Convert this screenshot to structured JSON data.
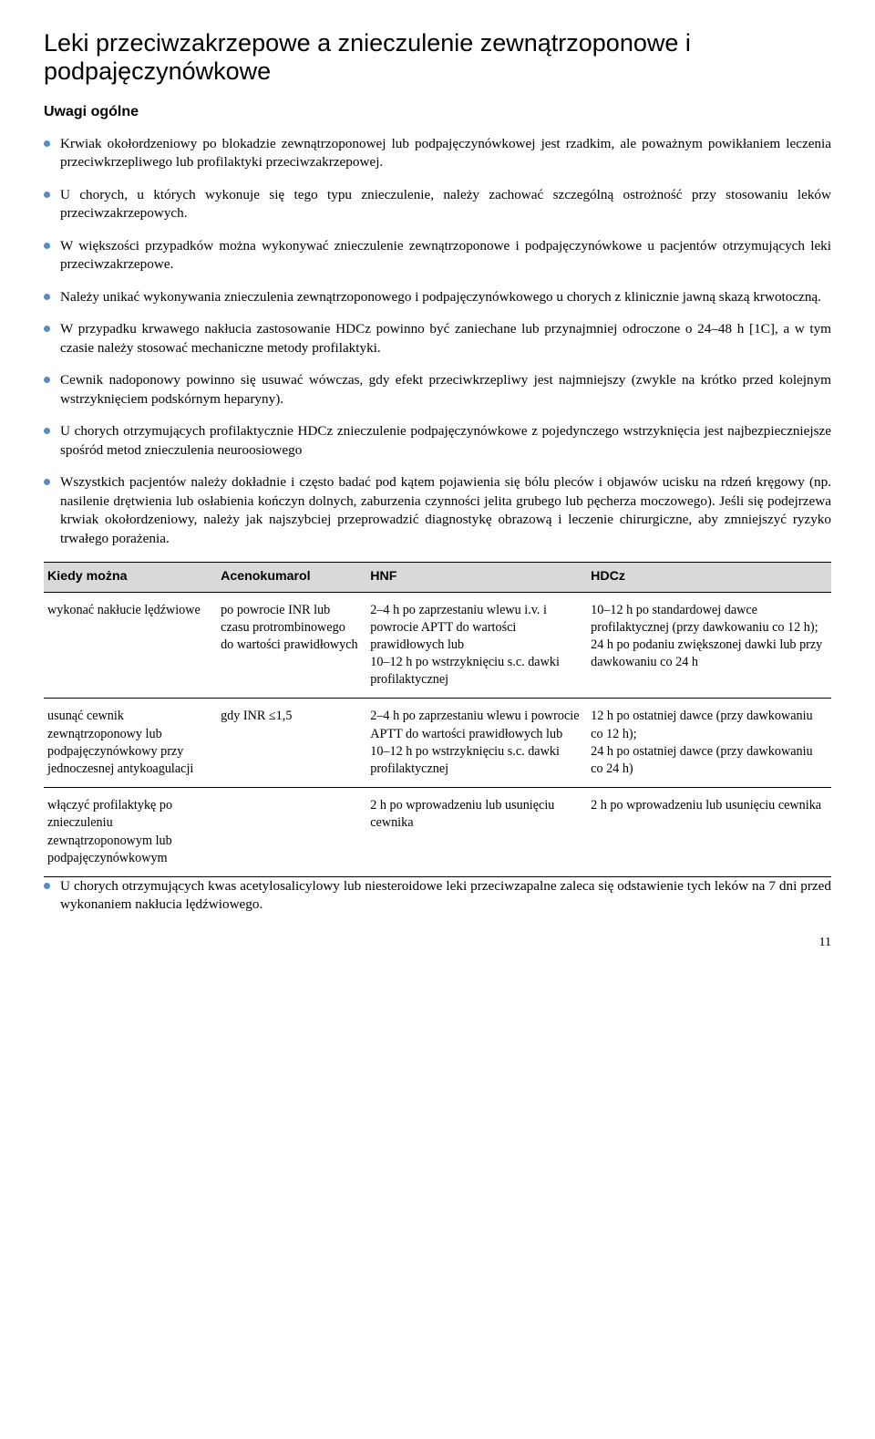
{
  "bullet_color": "#5a8bc2",
  "title": "Leki przeciwzakrzepowe a znieczulenie zewnątrzoponowe i podpajęczynówkowe",
  "subheading": "Uwagi ogólne",
  "bullets": [
    "Krwiak okołordzeniowy po blokadzie zewnątrzoponowej lub podpajęczynówkowej jest rzadkim, ale poważnym powikłaniem leczenia przeciwkrzepliwego lub profilaktyki przeciwzakrzepowej.",
    "U chorych, u których wykonuje się tego typu znieczulenie, należy zachować szczególną ostrożność przy stosowaniu leków przeciwzakrzepowych.",
    "W większości przypadków można wykonywać znieczulenie zewnątrzoponowe i podpajęczynówkowe u pacjentów otrzymujących leki przeciwzakrzepowe.",
    "Należy unikać wykonywania znieczulenia zewnątrzoponowego i podpajęczynówkowego u chorych z klinicznie jawną skazą krwotoczną.",
    "W przypadku krwawego nakłucia zastosowanie HDCz powinno być zaniechane lub przynajmniej odroczone o 24–48 h [1C], a w tym czasie należy stosować mechaniczne metody profilaktyki.",
    "Cewnik nadoponowy powinno się usuwać wówczas, gdy efekt przeciwkrzepliwy jest najmniejszy (zwykle na krótko przed kolejnym wstrzyknięciem podskórnym heparyny).",
    "U chorych otrzymujących profilaktycznie HDCz znieczulenie podpajęczynówkowe z pojedynczego wstrzyknięcia jest najbezpieczniejsze spośród metod znieczulenia neuroosiowego",
    "Wszystkich pacjentów należy dokładnie i często badać pod kątem pojawienia się bólu pleców i objawów ucisku na rdzeń kręgowy (np. nasilenie drętwienia lub osłabienia kończyn dolnych, zaburzenia czynności jelita grubego lub pęcherza moczowego). Jeśli się podejrzewa krwiak okołordzeniowy, należy jak najszybciej przeprowadzić diagnostykę obrazową i leczenie chirurgiczne, aby zmniejszyć ryzyko trwałego porażenia."
  ],
  "table": {
    "header_bg": "#d9d9d9",
    "columns": [
      "Kiedy można",
      "Acenokumarol",
      "HNF",
      "HDCz"
    ],
    "rows": [
      [
        "wykonać nakłucie lędźwiowe",
        "po powrocie INR lub czasu protrombinowego do wartości prawidłowych",
        "2–4 h po zaprzestaniu wlewu i.v. i powrocie APTT do wartości prawidłowych lub\n10–12 h po wstrzyknięciu s.c. dawki profilaktycznej",
        "10–12 h po standardowej dawce profilaktycznej (przy dawkowaniu co 12 h);\n24 h po podaniu zwiększonej dawki lub przy dawkowaniu co 24 h"
      ],
      [
        "usunąć cewnik zewnątrzoponowy lub podpajęczynówkowy przy jednoczesnej antykoagulacji",
        "gdy INR ≤1,5",
        "2–4 h po zaprzestaniu wlewu i powrocie APTT do wartości prawidłowych lub\n10–12 h po wstrzyknięciu s.c. dawki profilaktycznej",
        "12 h po ostatniej dawce (przy dawkowaniu co 12 h);\n24 h po ostatniej dawce (przy dawkowaniu co 24 h)"
      ],
      [
        "włączyć profilaktykę po znieczuleniu zewnątrzoponowym lub podpajęczynówkowym",
        "",
        "2 h po wprowadzeniu lub usunięciu cewnika",
        "2 h po wprowadzeniu lub usunięciu cewnika"
      ]
    ]
  },
  "bottom_bullet": "U chorych otrzymujących kwas acetylosalicylowy lub niesteroidowe leki przeciwzapalne zaleca się odstawienie tych leków na 7 dni przed wykonaniem nakłucia lędźwiowego.",
  "page_number": "11"
}
